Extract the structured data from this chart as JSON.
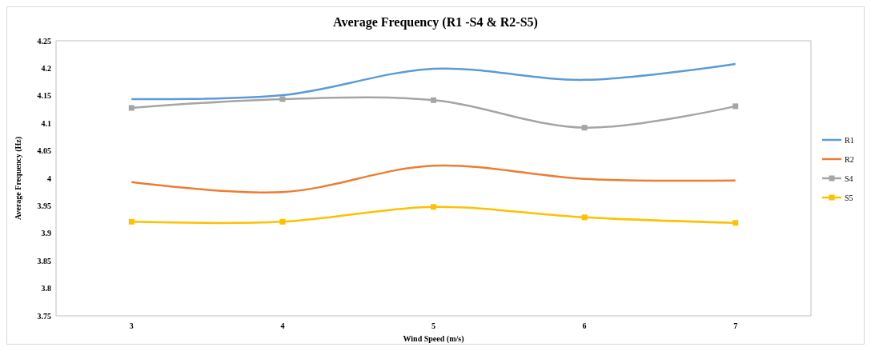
{
  "chart_data": {
    "type": "line",
    "title": "Average Frequency (R1 -S4 & R2-S5)",
    "xlabel": "Wind Speed (m/s)",
    "ylabel": "Average Frequency  (Hz)",
    "categories": [
      "3",
      "4",
      "5",
      "6",
      "7"
    ],
    "ylim": [
      3.75,
      4.25
    ],
    "yticks": [
      3.75,
      3.8,
      3.85,
      3.9,
      3.95,
      4,
      4.05,
      4.1,
      4.15,
      4.2,
      4.25
    ],
    "legend": "right",
    "grid": false,
    "series": [
      {
        "name": "R1",
        "color": "#5b9bd5",
        "marker": "none",
        "values": [
          4.144,
          4.151,
          4.199,
          4.179,
          4.208
        ]
      },
      {
        "name": "R2",
        "color": "#ed7d31",
        "marker": "none",
        "values": [
          3.993,
          3.975,
          4.023,
          3.999,
          3.996
        ]
      },
      {
        "name": "S4",
        "color": "#a5a5a5",
        "marker": "square",
        "values": [
          4.128,
          4.144,
          4.142,
          4.092,
          4.131
        ]
      },
      {
        "name": "S5",
        "color": "#ffc000",
        "marker": "square",
        "values": [
          3.921,
          3.921,
          3.948,
          3.929,
          3.919
        ]
      }
    ]
  }
}
